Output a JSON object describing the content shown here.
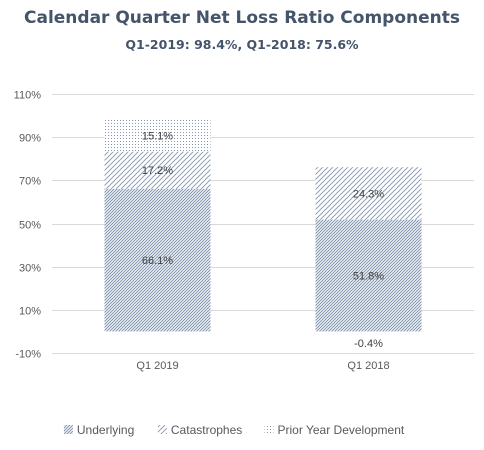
{
  "chart_data": {
    "type": "bar",
    "stacked": true,
    "title": "Calendar Quarter Net Loss Ratio Components",
    "subtitle": "Q1-2019: 98.4%, Q1-2018: 75.6%",
    "categories": [
      "Q1 2019",
      "Q1 2018"
    ],
    "series": [
      {
        "name": "Underlying",
        "values": [
          66.1,
          51.8
        ],
        "labels": [
          "66.1%",
          "51.8%"
        ],
        "pattern": "dense-diagonal"
      },
      {
        "name": "Catastrophes",
        "values": [
          17.2,
          24.3
        ],
        "labels": [
          "17.2%",
          "24.3%"
        ],
        "pattern": "sparse-diagonal"
      },
      {
        "name": "Prior Year Development",
        "values": [
          15.1,
          -0.4
        ],
        "labels": [
          "15.1%",
          "-0.4%"
        ],
        "pattern": "dots"
      }
    ],
    "y_ticks": [
      "-10%",
      "10%",
      "30%",
      "50%",
      "70%",
      "90%",
      "110%"
    ],
    "y_tick_values": [
      -10,
      10,
      30,
      50,
      70,
      90,
      110
    ],
    "ylim": [
      -10,
      110
    ],
    "grid": true,
    "legend_position": "bottom",
    "colors": {
      "bar": "#8497b0",
      "grid": "#d9d9d9",
      "text": "#595959",
      "title": "#44546a"
    }
  }
}
